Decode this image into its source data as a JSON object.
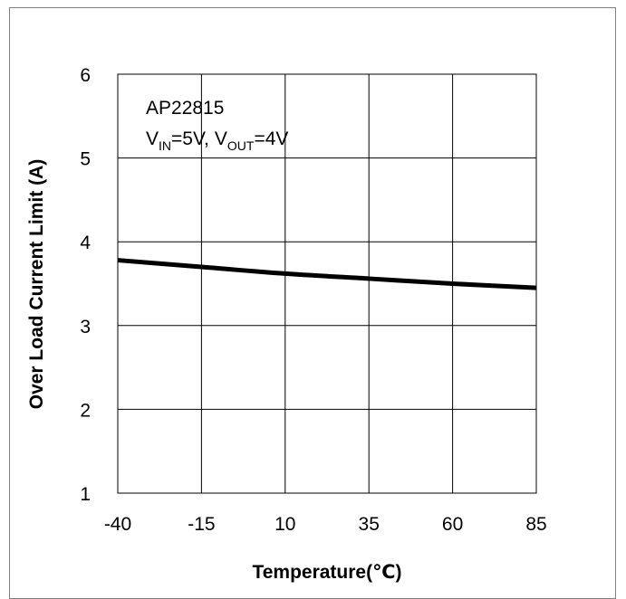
{
  "chart_data": {
    "type": "line",
    "title": "",
    "xlabel": "Temperature(℃)",
    "ylabel": "Over Load Current Limit (A)",
    "xlim": [
      -40,
      85
    ],
    "ylim": [
      1,
      6
    ],
    "xticks": [
      -40,
      -15,
      10,
      35,
      60,
      85
    ],
    "yticks": [
      1,
      2,
      3,
      4,
      5,
      6
    ],
    "grid": true,
    "annotation": {
      "device": "AP22815",
      "vin_label": "V",
      "vin_sub": "IN",
      "vin_value": "=5V,",
      "vout_label": "V",
      "vout_sub": "OUT",
      "vout_value": "=4V"
    },
    "series": [
      {
        "x": [
          -40,
          -15,
          10,
          35,
          60,
          85
        ],
        "y": [
          3.78,
          3.7,
          3.62,
          3.56,
          3.5,
          3.45
        ],
        "color": "#000000"
      }
    ]
  }
}
